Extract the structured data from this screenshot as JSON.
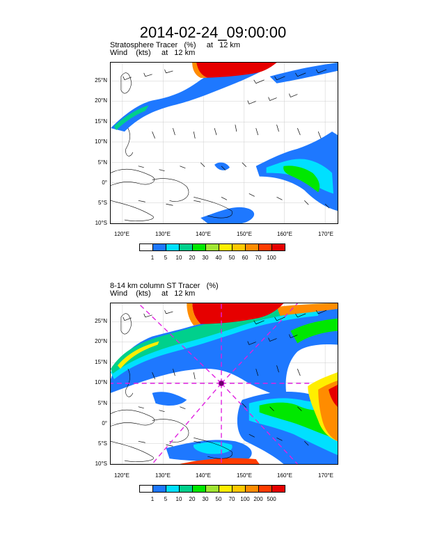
{
  "main_title": "2014-02-24_09:00:00",
  "panels": [
    {
      "title_line1": "Stratosphere Tracer   (%)     at   12 km",
      "title_line2": "Wind    (kts)     at   12 km",
      "lat_labels": [
        "25°N",
        "20°N",
        "15°N",
        "10°N",
        "5°N",
        "0°",
        "5°S",
        "10°S"
      ],
      "lon_labels": [
        "120°E",
        "130°E",
        "140°E",
        "150°E",
        "160°E",
        "170°E"
      ],
      "colorbar": {
        "labels": [
          "1",
          "5",
          "10",
          "20",
          "30",
          "40",
          "50",
          "60",
          "70",
          "100"
        ],
        "colors": [
          "#ffffff",
          "#1e78ff",
          "#00e0ff",
          "#00d08c",
          "#00e800",
          "#a0e632",
          "#ffee00",
          "#ffc800",
          "#ff8c00",
          "#ff3c00",
          "#e60000"
        ]
      }
    },
    {
      "title_line1": "8-14 km column ST Tracer   (%)",
      "title_line2": "Wind    (kts)     at   12 km",
      "lat_labels": [
        "25°N",
        "20°N",
        "15°N",
        "10°N",
        "5°N",
        "0°",
        "5°S",
        "10°S"
      ],
      "lon_labels": [
        "120°E",
        "130°E",
        "140°E",
        "150°E",
        "160°E",
        "170°E"
      ],
      "colorbar": {
        "labels": [
          "1",
          "5",
          "10",
          "20",
          "30",
          "50",
          "70",
          "100",
          "200",
          "500"
        ],
        "colors": [
          "#ffffff",
          "#1e78ff",
          "#00e0ff",
          "#00d08c",
          "#00e800",
          "#a0e632",
          "#ffee00",
          "#ffc800",
          "#ff8c00",
          "#ff3c00",
          "#e60000"
        ]
      }
    }
  ]
}
